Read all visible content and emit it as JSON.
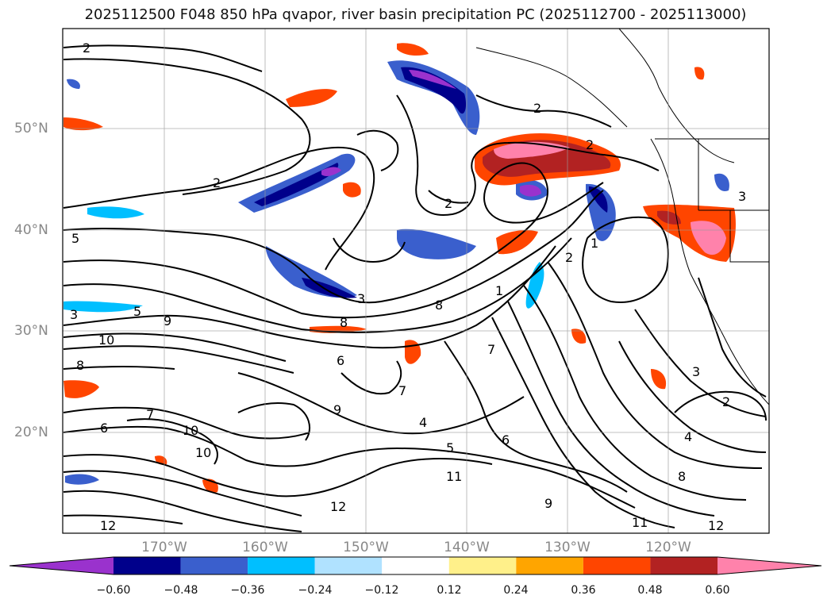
{
  "title": "2025112500 F048 850 hPa qvapor, river basin precipitation PC (2025112700 - 2025113000)",
  "map": {
    "lat_labels": [
      "50°N",
      "40°N",
      "30°N",
      "20°N"
    ],
    "lon_labels": [
      "170°W",
      "160°W",
      "150°W",
      "140°W",
      "130°W",
      "120°W"
    ],
    "contour_labels": [
      "2",
      "2",
      "2",
      "2",
      "2",
      "2",
      "2",
      "3",
      "3",
      "3",
      "3",
      "5",
      "5",
      "5",
      "6",
      "6",
      "6",
      "7",
      "7",
      "7",
      "8",
      "8",
      "8",
      "8",
      "9",
      "9",
      "9",
      "10",
      "10",
      "10",
      "11",
      "11",
      "12",
      "12",
      "12",
      "4",
      "4",
      "1",
      "1"
    ]
  },
  "colorbar": {
    "ticks": [
      "−0.60",
      "−0.48",
      "−0.36",
      "−0.24",
      "−0.12",
      "0.12",
      "0.24",
      "0.36",
      "0.48",
      "0.60"
    ],
    "colors": [
      "#9a32cd",
      "#00008b",
      "#3a5fcd",
      "#00bfff",
      "#b0e2ff",
      "#ffffff",
      "#fff08a",
      "#ffa500",
      "#ff4500",
      "#b22222",
      "#ff82ab"
    ]
  }
}
